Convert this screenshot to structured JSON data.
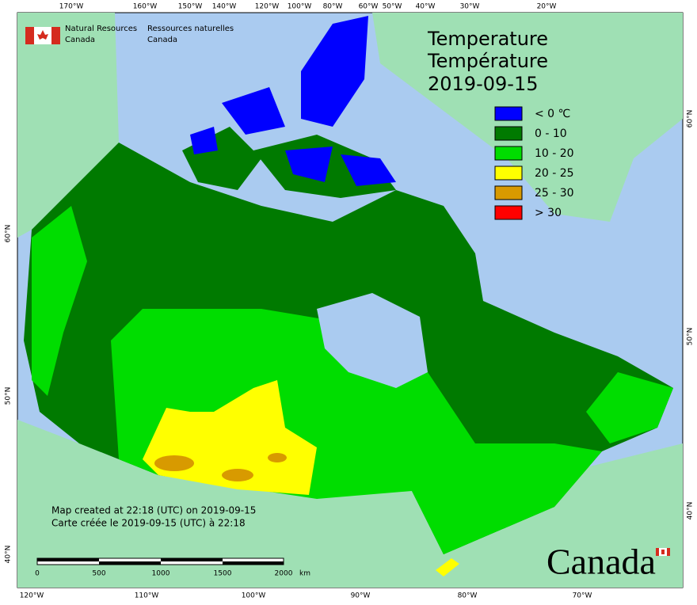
{
  "header": {
    "en_lines": [
      "Natural Resources",
      "Canada"
    ],
    "fr_lines": [
      "Ressources naturelles",
      "Canada"
    ]
  },
  "title": [
    "Temperature",
    "Température",
    "2019-09-15"
  ],
  "legend": [
    {
      "label": "< 0 ℃",
      "color": "#0000ff"
    },
    {
      "label": "0 - 10",
      "color": "#007a00"
    },
    {
      "label": "10 - 20",
      "color": "#00dd00"
    },
    {
      "label": "20 - 25",
      "color": "#ffff00"
    },
    {
      "label": "25 - 30",
      "color": "#d89a00"
    },
    {
      "label": "> 30",
      "color": "#ff0000"
    }
  ],
  "graticule": {
    "top": [
      "170°W",
      "160°W",
      "150°W",
      "140°W",
      "120°W",
      "100°W",
      "80°W",
      "60°W",
      "50°W",
      "40°W",
      "30°W",
      "20°W"
    ],
    "bottom": [
      "120°W",
      "110°W",
      "100°W",
      "90°W",
      "80°W",
      "70°W"
    ],
    "left": [
      "60°N",
      "50°N",
      "40°N"
    ],
    "right": [
      "60°N",
      "50°N",
      "40°N"
    ]
  },
  "credit": [
    "Map created at 22:18 (UTC) on 2019-09-15",
    "Carte créée le 2019-09-15 (UTC) à 22:18"
  ],
  "scale_bar": {
    "labels": [
      "0",
      "500",
      "1000",
      "1500",
      "2000"
    ],
    "unit": "km"
  },
  "wordmark": "Canada"
}
